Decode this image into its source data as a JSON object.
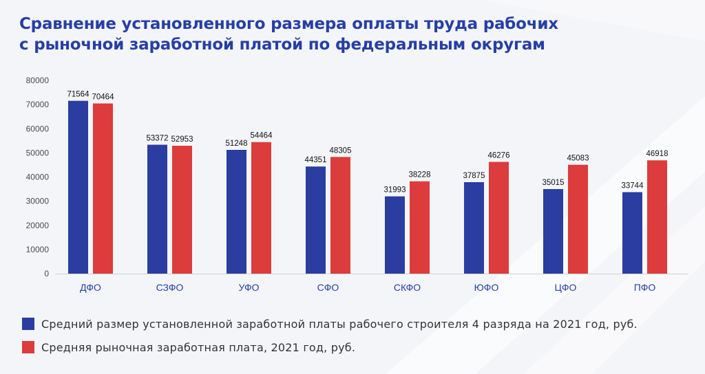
{
  "colors": {
    "title": "#263fa6",
    "series_blue": "#2b3da0",
    "series_red": "#dc3c3c",
    "axis_text": "#4a4a4a",
    "category_text": "#263fa6"
  },
  "chart_data": {
    "type": "bar",
    "title": "Сравнение установленного размера оплаты труда рабочих с рыночной заработной платой по федеральным округам",
    "title_lines": [
      "Сравнение установленного размера оплаты труда рабочих",
      "с рыночной заработной платой по федеральным округам"
    ],
    "categories": [
      "ДФО",
      "СЗФО",
      "УФО",
      "СФО",
      "СКФО",
      "ЮФО",
      "ЦФО",
      "ПФО"
    ],
    "series": [
      {
        "name": "Средний размер установленной заработной платы рабочего строителя 4 разряда на 2021 год, руб.",
        "values": [
          71564,
          53372,
          51248,
          44351,
          31993,
          37875,
          35015,
          33744
        ]
      },
      {
        "name": "Средняя рыночная заработная плата, 2021 год, руб.",
        "values": [
          70464,
          52953,
          54464,
          48305,
          38228,
          46276,
          45083,
          46918
        ]
      }
    ],
    "ylim": [
      0,
      80000
    ],
    "yticks": [
      0,
      10000,
      20000,
      30000,
      40000,
      50000,
      60000,
      70000,
      80000
    ],
    "xlabel": "",
    "ylabel": "",
    "grid": false,
    "legend": "bottom-left"
  }
}
